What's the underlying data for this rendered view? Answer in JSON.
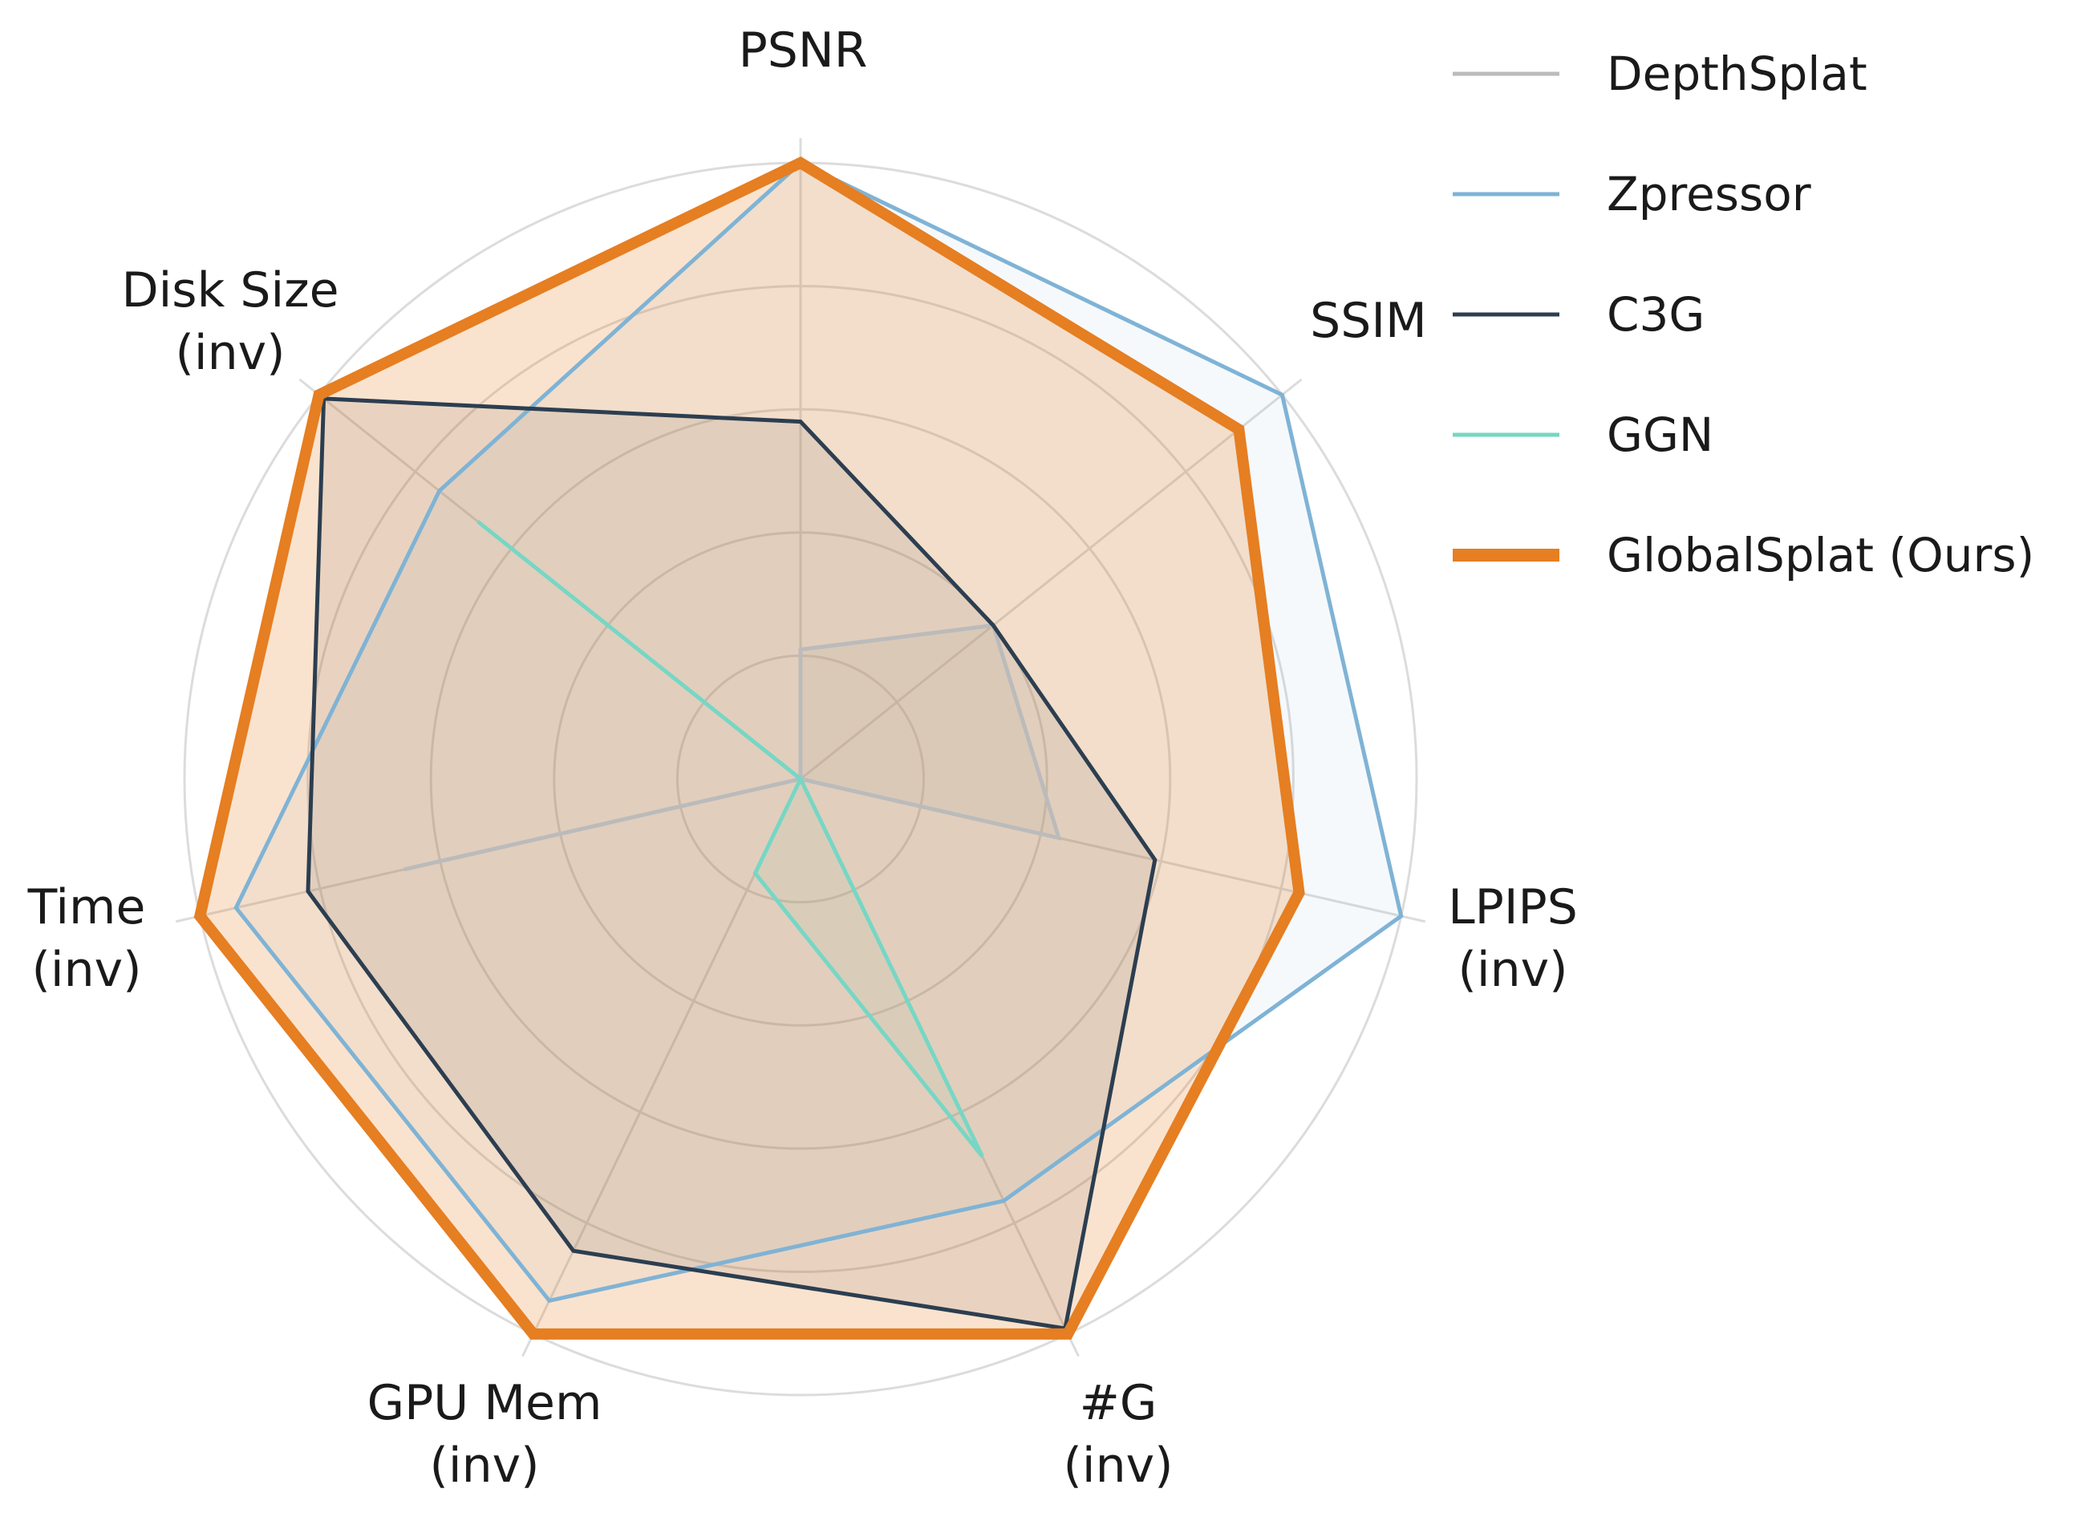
{
  "chart_data": {
    "type": "radar",
    "axes": [
      {
        "label": [
          "PSNR"
        ]
      },
      {
        "label": [
          "SSIM"
        ]
      },
      {
        "label": [
          "LPIPS",
          "(inv)"
        ]
      },
      {
        "label": [
          "#G",
          "(inv)"
        ]
      },
      {
        "label": [
          "GPU Mem",
          "(inv)"
        ]
      },
      {
        "label": [
          "Time",
          "(inv)"
        ]
      },
      {
        "label": [
          "Disk Size",
          "(inv)"
        ]
      }
    ],
    "rlim": [
      0,
      1
    ],
    "rings": [
      0.2,
      0.4,
      0.6,
      0.8,
      1.0
    ],
    "grid": true,
    "legend_position": "top-right",
    "series": [
      {
        "name": "DepthSplat",
        "color": "#bbbbbb",
        "values": [
          0.21,
          0.4,
          0.43,
          0.0,
          0.0,
          0.66,
          0.0
        ]
      },
      {
        "name": "Zpressor",
        "color": "#7fb3d5",
        "values": [
          1.0,
          1.0,
          1.0,
          0.76,
          0.94,
          0.94,
          0.75
        ]
      },
      {
        "name": "C3G",
        "color": "#2c3e50",
        "values": [
          0.58,
          0.4,
          0.59,
          0.99,
          0.85,
          0.82,
          0.99
        ]
      },
      {
        "name": "GGN",
        "color": "#76d7c4",
        "values": [
          0.0,
          0.0,
          0.0,
          0.68,
          0.17,
          0.0,
          0.67
        ]
      },
      {
        "name": "GlobalSplat (Ours)",
        "color": "#e67e22",
        "values": [
          1.0,
          0.91,
          0.83,
          1.0,
          1.0,
          1.0,
          1.0
        ]
      }
    ]
  }
}
